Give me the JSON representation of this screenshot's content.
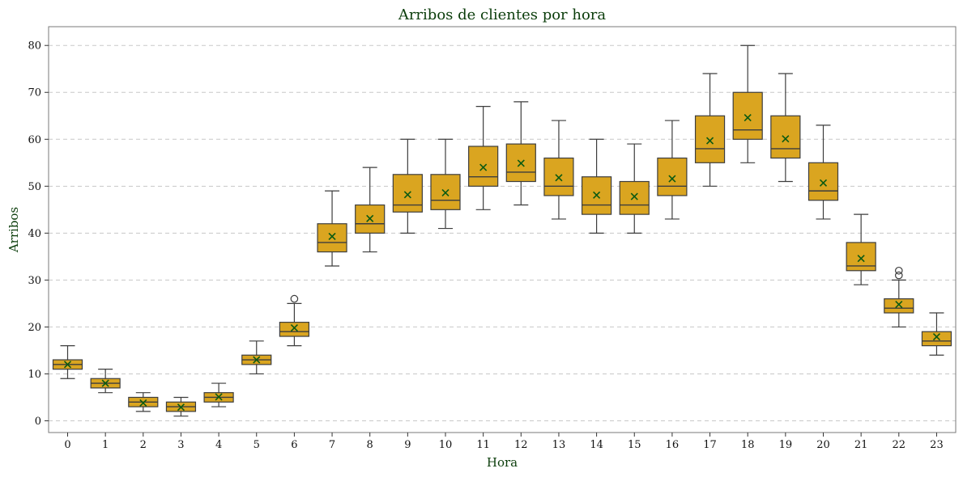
{
  "chart_data": {
    "type": "box",
    "title": "Arribos de clientes por hora",
    "xlabel": "Hora",
    "ylabel": "Arribos",
    "ylim": [
      -2.5,
      84
    ],
    "yticks": [
      0,
      10,
      20,
      30,
      40,
      50,
      60,
      70,
      80
    ],
    "grid": "y-dashed",
    "box_color": "#daa520",
    "mean_color": "#0b5a12",
    "mean_marker": "x",
    "categories": [
      "0",
      "1",
      "2",
      "3",
      "4",
      "5",
      "6",
      "7",
      "8",
      "9",
      "10",
      "11",
      "12",
      "13",
      "14",
      "15",
      "16",
      "17",
      "18",
      "19",
      "20",
      "21",
      "22",
      "23"
    ],
    "boxes": [
      {
        "hour": 0,
        "whislo": 9,
        "q1": 11,
        "median": 12,
        "q3": 13,
        "whishi": 16,
        "mean": 12,
        "fliers": []
      },
      {
        "hour": 1,
        "whislo": 6,
        "q1": 7,
        "median": 8,
        "q3": 9,
        "whishi": 11,
        "mean": 8,
        "fliers": []
      },
      {
        "hour": 2,
        "whislo": 2,
        "q1": 3,
        "median": 4,
        "q3": 5,
        "whishi": 6,
        "mean": 3.8,
        "fliers": []
      },
      {
        "hour": 3,
        "whislo": 1,
        "q1": 2,
        "median": 3,
        "q3": 4,
        "whishi": 5,
        "mean": 2.9,
        "fliers": []
      },
      {
        "hour": 4,
        "whislo": 3,
        "q1": 4,
        "median": 5,
        "q3": 6,
        "whishi": 8,
        "mean": 5.1,
        "fliers": []
      },
      {
        "hour": 5,
        "whislo": 10,
        "q1": 12,
        "median": 13,
        "q3": 14,
        "whishi": 17,
        "mean": 13,
        "fliers": []
      },
      {
        "hour": 6,
        "whislo": 16,
        "q1": 18,
        "median": 19,
        "q3": 21,
        "whishi": 25,
        "mean": 19.8,
        "fliers": [
          26
        ]
      },
      {
        "hour": 7,
        "whislo": 33,
        "q1": 36,
        "median": 38,
        "q3": 42,
        "whishi": 49,
        "mean": 39.3,
        "fliers": []
      },
      {
        "hour": 8,
        "whislo": 36,
        "q1": 40,
        "median": 42,
        "q3": 46,
        "whishi": 54,
        "mean": 43.1,
        "fliers": []
      },
      {
        "hour": 9,
        "whislo": 40,
        "q1": 44.5,
        "median": 46,
        "q3": 52.5,
        "whishi": 60,
        "mean": 48.2,
        "fliers": []
      },
      {
        "hour": 10,
        "whislo": 41,
        "q1": 45,
        "median": 47,
        "q3": 52.5,
        "whishi": 60,
        "mean": 48.6,
        "fliers": []
      },
      {
        "hour": 11,
        "whislo": 45,
        "q1": 50,
        "median": 52,
        "q3": 58.5,
        "whishi": 67,
        "mean": 54,
        "fliers": []
      },
      {
        "hour": 12,
        "whislo": 46,
        "q1": 51,
        "median": 53,
        "q3": 59,
        "whishi": 68,
        "mean": 54.9,
        "fliers": []
      },
      {
        "hour": 13,
        "whislo": 43,
        "q1": 48,
        "median": 50,
        "q3": 56,
        "whishi": 64,
        "mean": 51.8,
        "fliers": []
      },
      {
        "hour": 14,
        "whislo": 40,
        "q1": 44,
        "median": 46,
        "q3": 52,
        "whishi": 60,
        "mean": 48.1,
        "fliers": []
      },
      {
        "hour": 15,
        "whislo": 40,
        "q1": 44,
        "median": 46,
        "q3": 51,
        "whishi": 59,
        "mean": 47.8,
        "fliers": []
      },
      {
        "hour": 16,
        "whislo": 43,
        "q1": 48,
        "median": 50,
        "q3": 56,
        "whishi": 64,
        "mean": 51.6,
        "fliers": []
      },
      {
        "hour": 17,
        "whislo": 50,
        "q1": 55,
        "median": 58,
        "q3": 65,
        "whishi": 74,
        "mean": 59.7,
        "fliers": []
      },
      {
        "hour": 18,
        "whislo": 55,
        "q1": 60,
        "median": 62,
        "q3": 70,
        "whishi": 80,
        "mean": 64.6,
        "fliers": []
      },
      {
        "hour": 19,
        "whislo": 51,
        "q1": 56,
        "median": 58,
        "q3": 65,
        "whishi": 74,
        "mean": 60.1,
        "fliers": []
      },
      {
        "hour": 20,
        "whislo": 43,
        "q1": 47,
        "median": 49,
        "q3": 55,
        "whishi": 63,
        "mean": 50.7,
        "fliers": []
      },
      {
        "hour": 21,
        "whislo": 29,
        "q1": 32,
        "median": 33,
        "q3": 38,
        "whishi": 44,
        "mean": 34.6,
        "fliers": []
      },
      {
        "hour": 22,
        "whislo": 20,
        "q1": 23,
        "median": 24,
        "q3": 26,
        "whishi": 30,
        "mean": 24.8,
        "fliers": [
          31,
          32
        ]
      },
      {
        "hour": 23,
        "whislo": 14,
        "q1": 16,
        "median": 17,
        "q3": 19,
        "whishi": 23,
        "mean": 17.9,
        "fliers": []
      }
    ]
  }
}
